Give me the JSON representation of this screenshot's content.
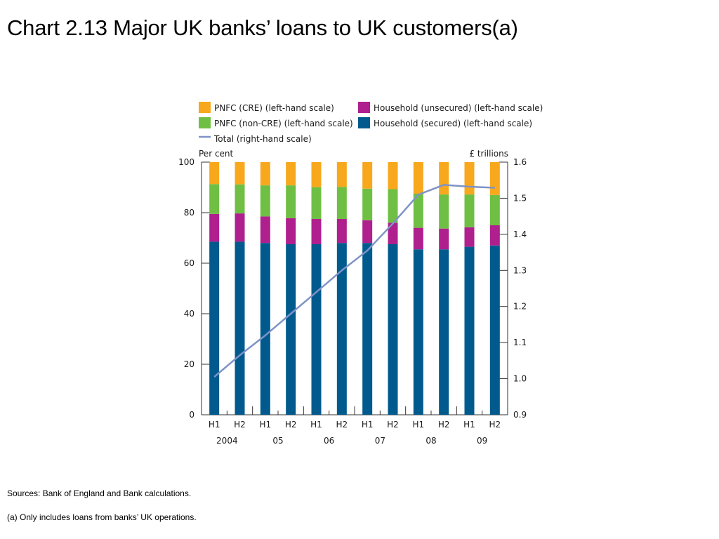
{
  "slide": {
    "title": "Chart 2.13  Major UK banks’ loans to UK customers(a)",
    "sources": "Sources:  Bank of England and Bank calculations.",
    "footnote": "(a)  Only includes loans from banks’ UK operations."
  },
  "chart_data": {
    "type": "bar",
    "stacked": true,
    "title": "",
    "left_axis": {
      "label": "Per cent",
      "ylim": [
        0,
        100
      ],
      "ticks": [
        "0",
        "20",
        "40",
        "60",
        "80",
        "100"
      ]
    },
    "right_axis": {
      "label": "£ trillions",
      "ylim": [
        0.9,
        1.6
      ],
      "ticks": [
        "0.9",
        "1.0",
        "1.1",
        "1.2",
        "1.3",
        "1.4",
        "1.5",
        "1.6"
      ]
    },
    "categories": [
      "H1",
      "H2",
      "H1",
      "H2",
      "H1",
      "H2",
      "H1",
      "H2",
      "H1",
      "H2",
      "H1",
      "H2"
    ],
    "years": [
      "2004",
      "05",
      "06",
      "07",
      "08",
      "09"
    ],
    "legend_position": "top",
    "grid": false,
    "series": [
      {
        "name": "Household (secured) (left-hand scale)",
        "color": "#005a8e",
        "values": [
          68.5,
          68.5,
          68.0,
          67.5,
          67.5,
          68.0,
          68.0,
          67.5,
          65.5,
          65.5,
          66.5,
          67.0
        ]
      },
      {
        "name": "Household (unsecured) (left-hand scale)",
        "color": "#b01f8e",
        "values": [
          11.0,
          11.2,
          10.5,
          10.3,
          10.0,
          9.5,
          9.0,
          8.5,
          8.5,
          8.2,
          7.7,
          8.0
        ]
      },
      {
        "name": "PNFC (non-CRE) (left-hand scale)",
        "color": "#6fbf44",
        "values": [
          11.8,
          11.5,
          12.3,
          13.0,
          12.6,
          12.7,
          12.5,
          13.3,
          13.5,
          13.5,
          13.0,
          12.0
        ]
      },
      {
        "name": "PNFC (CRE) (left-hand scale)",
        "color": "#f8a81c",
        "values": [
          8.7,
          8.8,
          9.2,
          9.2,
          9.9,
          9.8,
          10.5,
          10.7,
          12.5,
          12.8,
          12.8,
          13.0
        ]
      }
    ],
    "line_series": {
      "name": "Total (right-hand scale)",
      "color": "#7f93c6",
      "axis": "right",
      "values": [
        1.005,
        1.065,
        1.12,
        1.18,
        1.24,
        1.3,
        1.355,
        1.43,
        1.51,
        1.537,
        1.532,
        1.529
      ]
    }
  }
}
